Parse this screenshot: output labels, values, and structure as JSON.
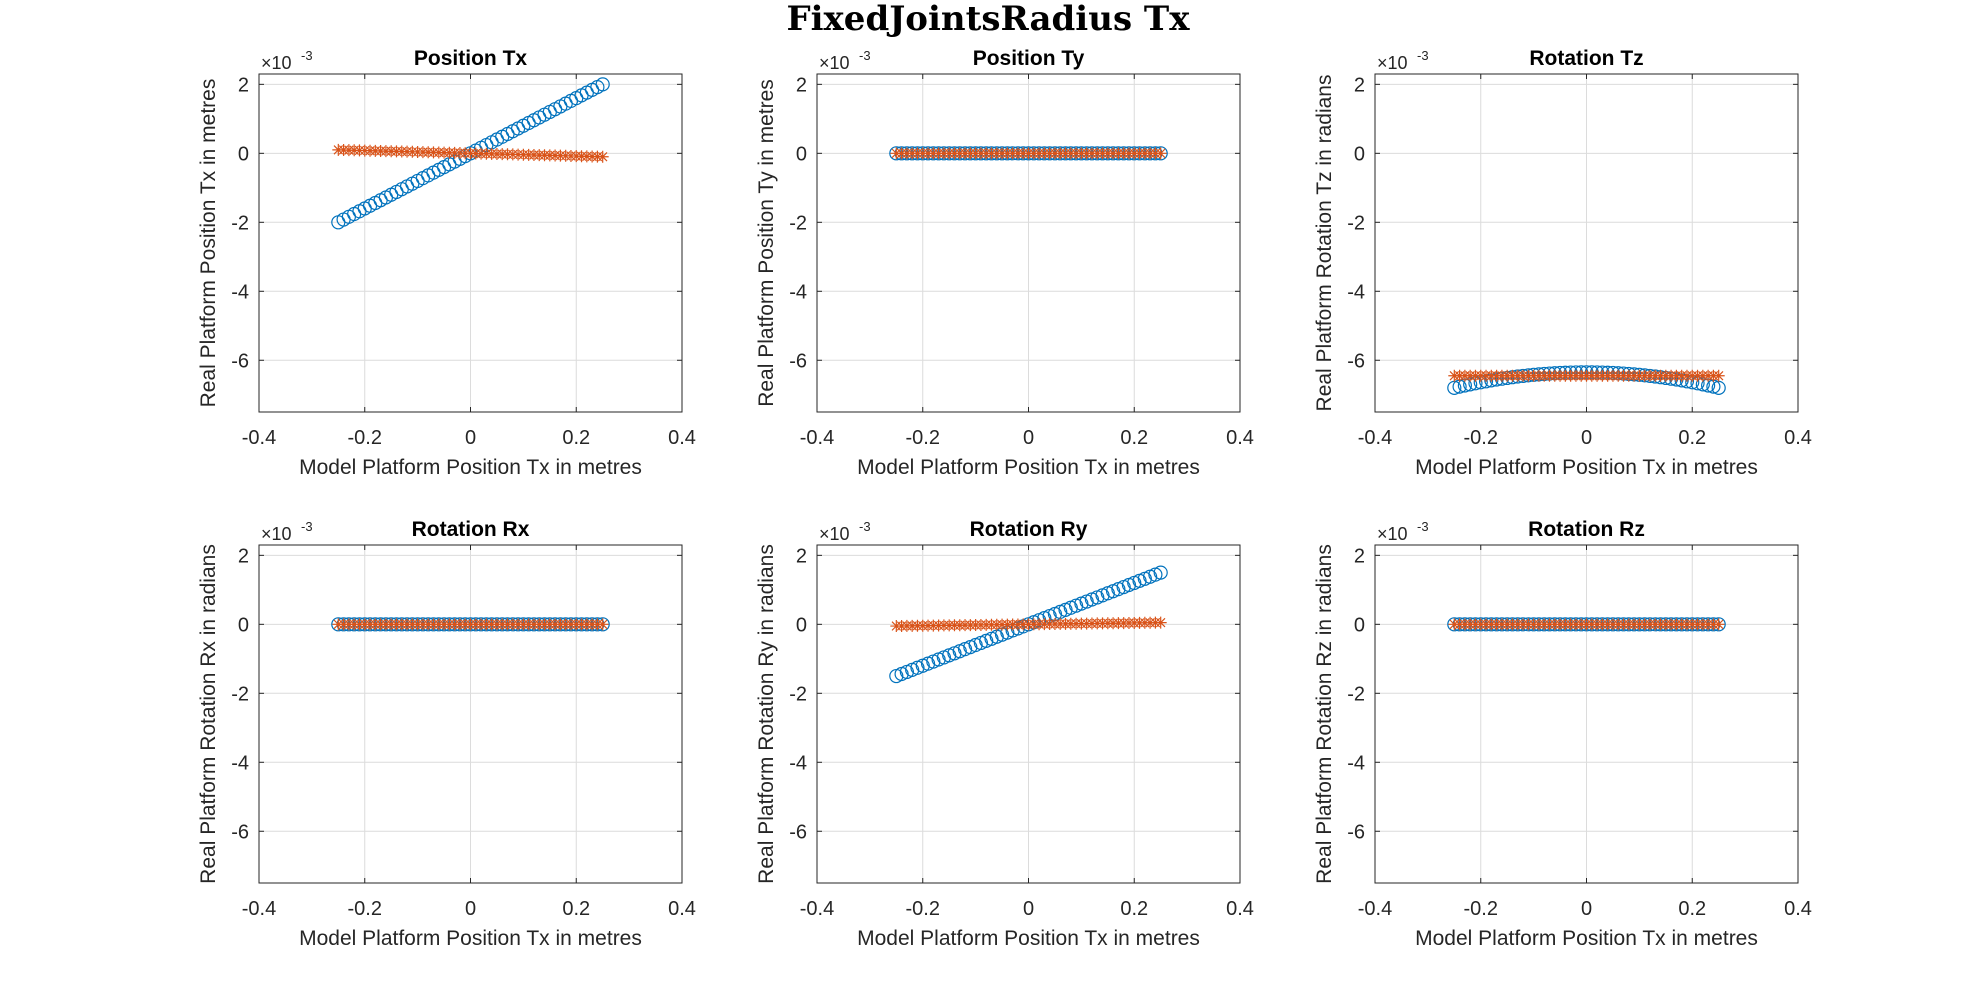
{
  "figure": {
    "title": "FixedJointsRadius Tx"
  },
  "colors": {
    "series1": "#0072BD",
    "series2": "#D95319",
    "grid": "#dcdcdc",
    "axis": "#262626"
  },
  "chart_data": [
    {
      "type": "scatter",
      "title": "Position Tx",
      "xlabel": "Model Platform Position Tx in metres",
      "ylabel": "Real Platform Position Tx in metres",
      "xlim": [
        -0.4,
        0.4
      ],
      "ylim": [
        -7.5,
        2.3
      ],
      "y_exponent": "-3",
      "xticks": [
        "-0.4",
        "-0.2",
        "0",
        "0.2",
        "0.4"
      ],
      "yticks": [
        "2",
        "0",
        "-2",
        "-4",
        "-6"
      ],
      "grid": true,
      "x_range": [
        -0.25,
        0.25
      ],
      "n_points": 51,
      "series": [
        {
          "marker": "circle",
          "color": "#0072BD",
          "y_start": -2.0,
          "y_end": 2.0,
          "curvature": 0
        },
        {
          "marker": "asterisk",
          "color": "#D95319",
          "y_start": 0.1,
          "y_end": -0.1,
          "curvature": 0
        }
      ]
    },
    {
      "type": "scatter",
      "title": "Position Ty",
      "xlabel": "Model Platform Position Tx in metres",
      "ylabel": "Real Platform Position Ty in metres",
      "xlim": [
        -0.4,
        0.4
      ],
      "ylim": [
        -7.5,
        2.3
      ],
      "y_exponent": "-3",
      "xticks": [
        "-0.4",
        "-0.2",
        "0",
        "0.2",
        "0.4"
      ],
      "yticks": [
        "2",
        "0",
        "-2",
        "-4",
        "-6"
      ],
      "grid": true,
      "x_range": [
        -0.25,
        0.25
      ],
      "n_points": 51,
      "series": [
        {
          "marker": "circle",
          "color": "#0072BD",
          "y_start": 0,
          "y_end": 0,
          "curvature": 0
        },
        {
          "marker": "asterisk",
          "color": "#D95319",
          "y_start": 0,
          "y_end": 0,
          "curvature": 0
        }
      ]
    },
    {
      "type": "scatter",
      "title": "Rotation Tz",
      "xlabel": "Model Platform Position Tx in metres",
      "ylabel": "Real Platform Rotation Tz in radians",
      "xlim": [
        -0.4,
        0.4
      ],
      "ylim": [
        -7.5,
        2.3
      ],
      "y_exponent": "-3",
      "xticks": [
        "-0.4",
        "-0.2",
        "0",
        "0.2",
        "0.4"
      ],
      "yticks": [
        "2",
        "0",
        "-2",
        "-4",
        "-6"
      ],
      "grid": true,
      "x_range": [
        -0.25,
        0.25
      ],
      "n_points": 51,
      "series": [
        {
          "marker": "circle",
          "color": "#0072BD",
          "y_start": -6.8,
          "y_end": -6.8,
          "curvature": 0.45
        },
        {
          "marker": "asterisk",
          "color": "#D95319",
          "y_start": -6.45,
          "y_end": -6.45,
          "curvature": 0
        }
      ]
    },
    {
      "type": "scatter",
      "title": "Rotation Rx",
      "xlabel": "Model Platform Position Tx in metres",
      "ylabel": "Real Platform Rotation Rx in radians",
      "xlim": [
        -0.4,
        0.4
      ],
      "ylim": [
        -7.5,
        2.3
      ],
      "y_exponent": "-3",
      "xticks": [
        "-0.4",
        "-0.2",
        "0",
        "0.2",
        "0.4"
      ],
      "yticks": [
        "2",
        "0",
        "-2",
        "-4",
        "-6"
      ],
      "grid": true,
      "x_range": [
        -0.25,
        0.25
      ],
      "n_points": 51,
      "series": [
        {
          "marker": "circle",
          "color": "#0072BD",
          "y_start": 0,
          "y_end": 0,
          "curvature": 0
        },
        {
          "marker": "asterisk",
          "color": "#D95319",
          "y_start": 0,
          "y_end": 0,
          "curvature": 0
        }
      ]
    },
    {
      "type": "scatter",
      "title": "Rotation Ry",
      "xlabel": "Model Platform Position Tx in metres",
      "ylabel": "Real Platform Rotation Ry in radians",
      "xlim": [
        -0.4,
        0.4
      ],
      "ylim": [
        -7.5,
        2.3
      ],
      "y_exponent": "-3",
      "xticks": [
        "-0.4",
        "-0.2",
        "0",
        "0.2",
        "0.4"
      ],
      "yticks": [
        "2",
        "0",
        "-2",
        "-4",
        "-6"
      ],
      "grid": true,
      "x_range": [
        -0.25,
        0.25
      ],
      "n_points": 51,
      "series": [
        {
          "marker": "circle",
          "color": "#0072BD",
          "y_start": -1.5,
          "y_end": 1.5,
          "curvature": 0
        },
        {
          "marker": "asterisk",
          "color": "#D95319",
          "y_start": -0.05,
          "y_end": 0.05,
          "curvature": 0
        }
      ]
    },
    {
      "type": "scatter",
      "title": "Rotation Rz",
      "xlabel": "Model Platform Position Tx in metres",
      "ylabel": "Real Platform Rotation Rz in radians",
      "xlim": [
        -0.4,
        0.4
      ],
      "ylim": [
        -7.5,
        2.3
      ],
      "y_exponent": "-3",
      "xticks": [
        "-0.4",
        "-0.2",
        "0",
        "0.2",
        "0.4"
      ],
      "yticks": [
        "2",
        "0",
        "-2",
        "-4",
        "-6"
      ],
      "grid": true,
      "x_range": [
        -0.25,
        0.25
      ],
      "n_points": 51,
      "series": [
        {
          "marker": "circle",
          "color": "#0072BD",
          "y_start": 0,
          "y_end": 0,
          "curvature": 0
        },
        {
          "marker": "asterisk",
          "color": "#D95319",
          "y_start": 0,
          "y_end": 0,
          "curvature": 0
        }
      ]
    }
  ]
}
